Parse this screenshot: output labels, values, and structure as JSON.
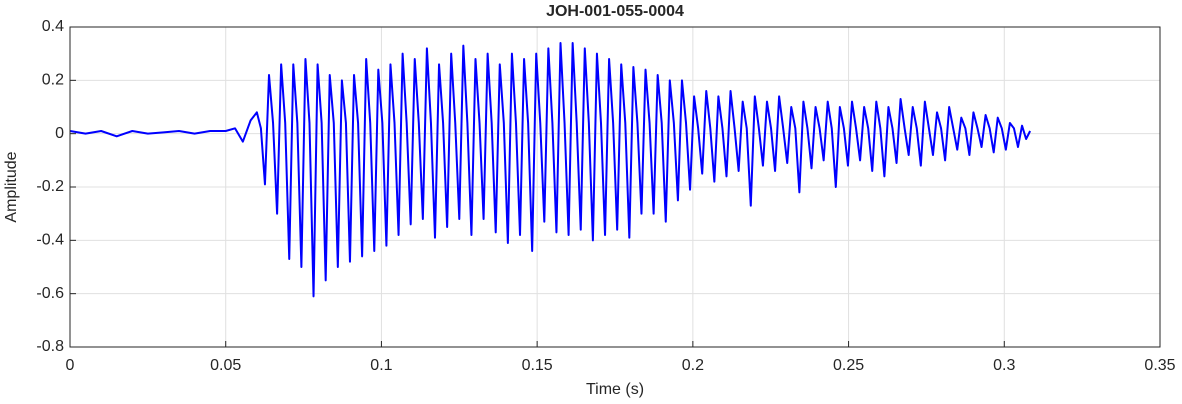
{
  "chart_data": {
    "type": "line",
    "title": "JOH-001-055-0004",
    "xlabel": "Time (s)",
    "ylabel": "Amplitude",
    "color": "#0000ff",
    "grid": true,
    "xlim": [
      0,
      0.35
    ],
    "xticks": [
      0,
      0.05,
      0.1,
      0.15,
      0.2,
      0.25,
      0.3,
      0.35
    ],
    "ylim": [
      -0.8,
      0.4
    ],
    "yticks": [
      -0.8,
      -0.6,
      -0.4,
      -0.2,
      0,
      0.2,
      0.4
    ],
    "x": [
      0,
      0.005,
      0.01,
      0.015,
      0.02,
      0.025,
      0.03,
      0.035,
      0.04,
      0.045,
      0.05,
      0.053,
      0.0555,
      0.058,
      0.06,
      0.0613,
      0.0626,
      0.0639,
      0.0652,
      0.0665,
      0.0678,
      0.0691,
      0.0704,
      0.0717,
      0.073,
      0.0743,
      0.0756,
      0.0769,
      0.0782,
      0.0795,
      0.0808,
      0.0821,
      0.0834,
      0.0847,
      0.086,
      0.0873,
      0.0886,
      0.0899,
      0.0912,
      0.0925,
      0.0938,
      0.0951,
      0.0964,
      0.0977,
      0.099,
      0.1003,
      0.1016,
      0.1029,
      0.1042,
      0.1055,
      0.1068,
      0.1081,
      0.1094,
      0.1107,
      0.112,
      0.1133,
      0.1146,
      0.1159,
      0.1172,
      0.1185,
      0.1198,
      0.1211,
      0.1224,
      0.1237,
      0.125,
      0.1263,
      0.1276,
      0.1289,
      0.1302,
      0.1315,
      0.1328,
      0.1341,
      0.1354,
      0.1367,
      0.138,
      0.1393,
      0.1406,
      0.1419,
      0.1432,
      0.1445,
      0.1458,
      0.1471,
      0.1484,
      0.1497,
      0.151,
      0.1523,
      0.1536,
      0.1549,
      0.1562,
      0.1575,
      0.1588,
      0.1601,
      0.1614,
      0.1627,
      0.164,
      0.1653,
      0.1666,
      0.1679,
      0.1692,
      0.1705,
      0.1718,
      0.1731,
      0.1744,
      0.1757,
      0.177,
      0.1783,
      0.1796,
      0.1809,
      0.1822,
      0.1835,
      0.1848,
      0.1861,
      0.1874,
      0.1887,
      0.19,
      0.1913,
      0.1926,
      0.1939,
      0.1952,
      0.1965,
      0.1978,
      0.1991,
      0.2004,
      0.2017,
      0.203,
      0.2043,
      0.2056,
      0.2069,
      0.2082,
      0.2095,
      0.2108,
      0.2121,
      0.2134,
      0.2147,
      0.216,
      0.2173,
      0.2186,
      0.2199,
      0.2212,
      0.2225,
      0.2238,
      0.2251,
      0.2264,
      0.2277,
      0.229,
      0.2303,
      0.2316,
      0.2329,
      0.2342,
      0.2355,
      0.2368,
      0.2381,
      0.2394,
      0.2407,
      0.242,
      0.2433,
      0.2446,
      0.2459,
      0.2472,
      0.2485,
      0.2498,
      0.2511,
      0.2524,
      0.2537,
      0.255,
      0.2563,
      0.2576,
      0.2589,
      0.2602,
      0.2615,
      0.2628,
      0.2641,
      0.2654,
      0.2667,
      0.268,
      0.2693,
      0.2706,
      0.2719,
      0.2732,
      0.2745,
      0.2758,
      0.2771,
      0.2784,
      0.2797,
      0.281,
      0.2823,
      0.2836,
      0.2849,
      0.2862,
      0.2875,
      0.2888,
      0.2901,
      0.2914,
      0.2927,
      0.294,
      0.2953,
      0.2966,
      0.2979,
      0.2992,
      0.3005,
      0.3018,
      0.3031,
      0.3044,
      0.3057,
      0.307,
      0.3083
    ],
    "values": [
      0.01,
      0,
      0.01,
      -0.01,
      0.01,
      0,
      0.005,
      0.01,
      0,
      0.01,
      0.01,
      0.02,
      -0.03,
      0.05,
      0.08,
      0.02,
      -0.19,
      0.22,
      0.04,
      -0.3,
      0.26,
      0.04,
      -0.47,
      0.26,
      0.04,
      -0.5,
      0.28,
      0.04,
      -0.61,
      0.26,
      0.04,
      -0.55,
      0.22,
      0.04,
      -0.5,
      0.2,
      0.04,
      -0.48,
      0.22,
      0.04,
      -0.46,
      0.28,
      0.04,
      -0.44,
      0.24,
      0.04,
      -0.42,
      0.26,
      0.04,
      -0.38,
      0.3,
      0.04,
      -0.34,
      0.28,
      0.04,
      -0.32,
      0.32,
      0.04,
      -0.39,
      0.26,
      0.04,
      -0.35,
      0.3,
      0.04,
      -0.32,
      0.33,
      0.04,
      -0.38,
      0.28,
      0.04,
      -0.32,
      0.3,
      0.04,
      -0.37,
      0.26,
      0.04,
      -0.41,
      0.3,
      0.04,
      -0.38,
      0.28,
      0.04,
      -0.44,
      0.3,
      0.04,
      -0.33,
      0.32,
      0.04,
      -0.37,
      0.34,
      0.04,
      -0.38,
      0.34,
      0.04,
      -0.36,
      0.32,
      0.04,
      -0.4,
      0.3,
      0.04,
      -0.38,
      0.28,
      0.04,
      -0.36,
      0.26,
      0.04,
      -0.39,
      0.25,
      0.04,
      -0.3,
      0.24,
      0.04,
      -0.3,
      0.22,
      0.04,
      -0.33,
      0.2,
      0.04,
      -0.25,
      0.2,
      0.04,
      -0.21,
      0.14,
      0.02,
      -0.15,
      0.16,
      0.02,
      -0.18,
      0.14,
      0.02,
      -0.16,
      0.16,
      0.02,
      -0.14,
      0.12,
      0.02,
      -0.27,
      0.14,
      0.02,
      -0.12,
      0.12,
      0.02,
      -0.14,
      0.14,
      0.02,
      -0.11,
      0.1,
      0.02,
      -0.22,
      0.12,
      0.02,
      -0.13,
      0.1,
      0.02,
      -0.1,
      0.12,
      0.02,
      -0.2,
      0.1,
      0.02,
      -0.12,
      0.12,
      0.02,
      -0.1,
      0.1,
      0.02,
      -0.14,
      0.12,
      0.02,
      -0.16,
      0.1,
      0.02,
      -0.11,
      0.13,
      0.02,
      -0.08,
      0.1,
      0.02,
      -0.12,
      0.12,
      0.02,
      -0.08,
      0.08,
      0.02,
      -0.1,
      0.1,
      0.02,
      -0.06,
      0.06,
      0.02,
      -0.08,
      0.08,
      0.02,
      -0.05,
      0.07,
      0.02,
      -0.07,
      0.06,
      0.02,
      -0.06,
      0.04,
      0.02,
      -0.05,
      0.03,
      -0.02,
      0.01
    ]
  }
}
